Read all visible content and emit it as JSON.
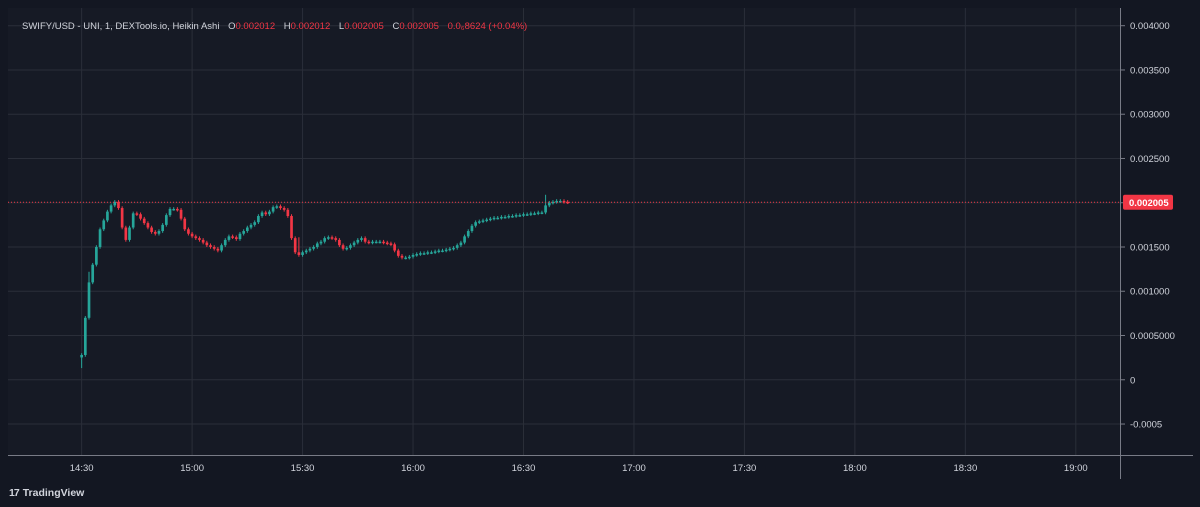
{
  "legend": {
    "symbol": "SWIFY/USD - UNI, 1, DEXTools.io, Heikin Ashi",
    "open_key": "O",
    "open": "0.002012",
    "high_key": "H",
    "high": "0.002012",
    "low_key": "L",
    "low": "0.002005",
    "close_key": "C",
    "close": "0.002005",
    "change": "0.0₆8624 (+0.04%)"
  },
  "price_badge": "0.002005",
  "brand": {
    "logo": "17",
    "name": "TradingView"
  },
  "colors": {
    "up": "#26a69a",
    "down": "#f23645",
    "background": "#161a25",
    "grid": "#2a2e39",
    "text": "#d1d4dc"
  },
  "chart_data": {
    "type": "candlestick",
    "style": "Heikin Ashi",
    "interval": "1",
    "ylim": [
      -0.00085,
      0.0042
    ],
    "y_ticks": [
      {
        "value": 0.004,
        "label": "0.004000"
      },
      {
        "value": 0.0035,
        "label": "0.003500"
      },
      {
        "value": 0.003,
        "label": "0.003000"
      },
      {
        "value": 0.0025,
        "label": "0.002500"
      },
      {
        "value": 0.002,
        "label": "0.002000"
      },
      {
        "value": 0.0015,
        "label": "0.001500"
      },
      {
        "value": 0.001,
        "label": "0.001000"
      },
      {
        "value": 0.0005,
        "label": "0.0005000"
      },
      {
        "value": 0,
        "label": "0"
      },
      {
        "value": -0.0005,
        "label": "-0.0005"
      }
    ],
    "x_ticks": [
      {
        "minute": 870,
        "label": "14:30"
      },
      {
        "minute": 900,
        "label": "15:00"
      },
      {
        "minute": 930,
        "label": "15:30"
      },
      {
        "minute": 960,
        "label": "16:00"
      },
      {
        "minute": 990,
        "label": "16:30"
      },
      {
        "minute": 1020,
        "label": "17:00"
      },
      {
        "minute": 1050,
        "label": "17:30"
      },
      {
        "minute": 1080,
        "label": "18:00"
      },
      {
        "minute": 1110,
        "label": "18:30"
      },
      {
        "minute": 1140,
        "label": "19:00"
      }
    ],
    "xlim_minutes": [
      850,
      1152
    ],
    "last_price": 0.002005,
    "grid": true,
    "close_path": [
      [
        870,
        0.00028
      ],
      [
        871,
        0.0007
      ],
      [
        872,
        0.0011
      ],
      [
        873,
        0.0013
      ],
      [
        874,
        0.0015
      ],
      [
        875,
        0.0017
      ],
      [
        876,
        0.0018
      ],
      [
        877,
        0.0019
      ],
      [
        878,
        0.00197
      ],
      [
        879,
        0.00201
      ],
      [
        880,
        0.00194
      ],
      [
        881,
        0.00172
      ],
      [
        882,
        0.00158
      ],
      [
        883,
        0.00172
      ],
      [
        884,
        0.00188
      ],
      [
        885,
        0.00187
      ],
      [
        886,
        0.00182
      ],
      [
        887,
        0.00177
      ],
      [
        888,
        0.00172
      ],
      [
        889,
        0.00167
      ],
      [
        890,
        0.00165
      ],
      [
        891,
        0.00168
      ],
      [
        892,
        0.00175
      ],
      [
        893,
        0.00186
      ],
      [
        894,
        0.00193
      ],
      [
        895,
        0.00193
      ],
      [
        896,
        0.00192
      ],
      [
        897,
        0.00182
      ],
      [
        898,
        0.0017
      ],
      [
        899,
        0.00165
      ],
      [
        900,
        0.00162
      ],
      [
        901,
        0.0016
      ],
      [
        902,
        0.00158
      ],
      [
        903,
        0.00155
      ],
      [
        904,
        0.00152
      ],
      [
        905,
        0.0015
      ],
      [
        906,
        0.00148
      ],
      [
        907,
        0.00146
      ],
      [
        908,
        0.00152
      ],
      [
        909,
        0.00158
      ],
      [
        910,
        0.00162
      ],
      [
        911,
        0.00161
      ],
      [
        912,
        0.00159
      ],
      [
        913,
        0.00165
      ],
      [
        914,
        0.00168
      ],
      [
        915,
        0.00172
      ],
      [
        916,
        0.00175
      ],
      [
        917,
        0.00178
      ],
      [
        918,
        0.00185
      ],
      [
        919,
        0.00189
      ],
      [
        920,
        0.00187
      ],
      [
        921,
        0.0019
      ],
      [
        922,
        0.00195
      ],
      [
        923,
        0.00196
      ],
      [
        924,
        0.00194
      ],
      [
        925,
        0.00192
      ],
      [
        926,
        0.00185
      ],
      [
        927,
        0.0016
      ],
      [
        928,
        0.00144
      ],
      [
        929,
        0.00141
      ],
      [
        930,
        0.00144
      ],
      [
        931,
        0.00146
      ],
      [
        932,
        0.00148
      ],
      [
        933,
        0.0015
      ],
      [
        934,
        0.00154
      ],
      [
        935,
        0.00156
      ],
      [
        936,
        0.0016
      ],
      [
        937,
        0.00161
      ],
      [
        938,
        0.0016
      ],
      [
        939,
        0.00158
      ],
      [
        940,
        0.00152
      ],
      [
        941,
        0.00148
      ],
      [
        942,
        0.00149
      ],
      [
        943,
        0.00152
      ],
      [
        944,
        0.00155
      ],
      [
        945,
        0.00158
      ],
      [
        946,
        0.0016
      ],
      [
        947,
        0.00156
      ],
      [
        948,
        0.00155
      ],
      [
        949,
        0.00156
      ],
      [
        950,
        0.00156
      ],
      [
        951,
        0.00156
      ],
      [
        952,
        0.00155
      ],
      [
        953,
        0.00154
      ],
      [
        954,
        0.00153
      ],
      [
        955,
        0.00146
      ],
      [
        956,
        0.0014
      ],
      [
        957,
        0.00138
      ],
      [
        958,
        0.00138
      ],
      [
        959,
        0.00139
      ],
      [
        960,
        0.00141
      ],
      [
        961,
        0.00142
      ],
      [
        962,
        0.00143
      ],
      [
        963,
        0.00143
      ],
      [
        964,
        0.00144
      ],
      [
        965,
        0.00144
      ],
      [
        966,
        0.00145
      ],
      [
        967,
        0.00146
      ],
      [
        968,
        0.00146
      ],
      [
        969,
        0.00147
      ],
      [
        970,
        0.00148
      ],
      [
        971,
        0.00149
      ],
      [
        972,
        0.00152
      ],
      [
        973,
        0.00155
      ],
      [
        974,
        0.00162
      ],
      [
        975,
        0.00168
      ],
      [
        976,
        0.00174
      ],
      [
        977,
        0.00178
      ],
      [
        978,
        0.00179
      ],
      [
        979,
        0.0018
      ],
      [
        980,
        0.00181
      ],
      [
        981,
        0.00182
      ],
      [
        982,
        0.00183
      ],
      [
        983,
        0.00183
      ],
      [
        984,
        0.00184
      ],
      [
        985,
        0.00184
      ],
      [
        986,
        0.00185
      ],
      [
        987,
        0.00185
      ],
      [
        988,
        0.00186
      ],
      [
        989,
        0.00186
      ],
      [
        990,
        0.00187
      ],
      [
        991,
        0.00187
      ],
      [
        992,
        0.00188
      ],
      [
        993,
        0.00188
      ],
      [
        994,
        0.00189
      ],
      [
        995,
        0.00189
      ],
      [
        996,
        0.00197
      ],
      [
        997,
        0.002
      ],
      [
        998,
        0.00201
      ],
      [
        999,
        0.00202
      ],
      [
        1000,
        0.00202
      ],
      [
        1001,
        0.00201
      ],
      [
        1002,
        0.002005
      ]
    ]
  }
}
